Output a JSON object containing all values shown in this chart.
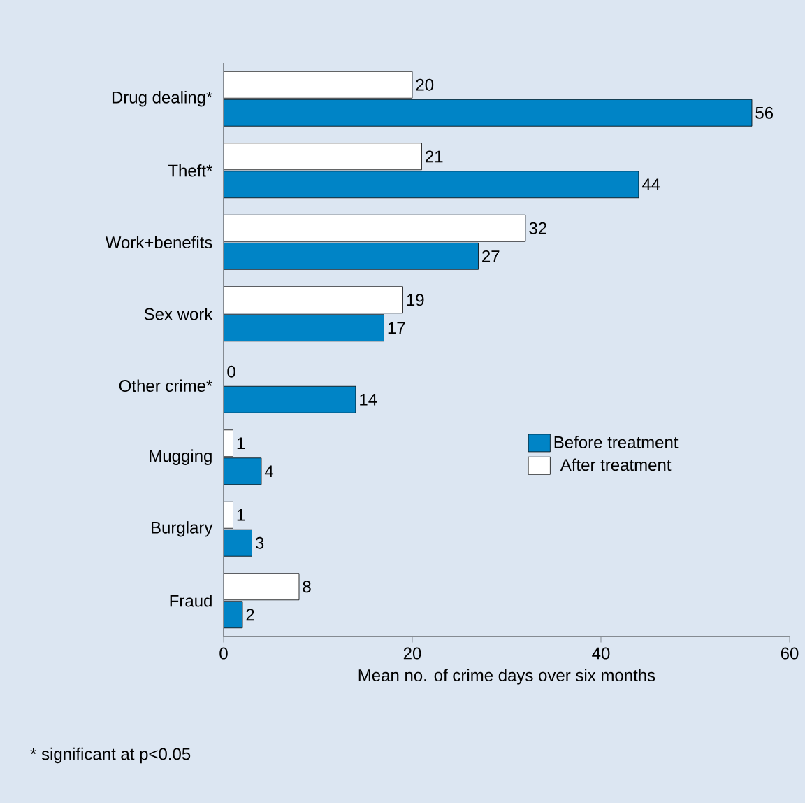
{
  "chart_data": {
    "type": "bar",
    "orientation": "horizontal",
    "categories": [
      "Drug dealing*",
      "Theft*",
      "Work+benefits",
      "Sex work",
      "Other crime*",
      "Mugging",
      "Burglary",
      "Fraud"
    ],
    "series": [
      {
        "name": "Before treatment",
        "color": "#0084c6",
        "values": [
          56,
          44,
          27,
          17,
          14,
          4,
          3,
          2
        ]
      },
      {
        "name": "After treatment",
        "color": "#ffffff",
        "values": [
          20,
          21,
          32,
          19,
          0,
          1,
          1,
          8
        ]
      }
    ],
    "xlabel": "Mean no. of crime days over six months",
    "xlim": [
      0,
      60
    ],
    "xticks": [
      0,
      20,
      40,
      60
    ],
    "data_labels": true,
    "legend": "right",
    "grid": false,
    "annotations": [
      "* significant at p<0.05"
    ]
  }
}
